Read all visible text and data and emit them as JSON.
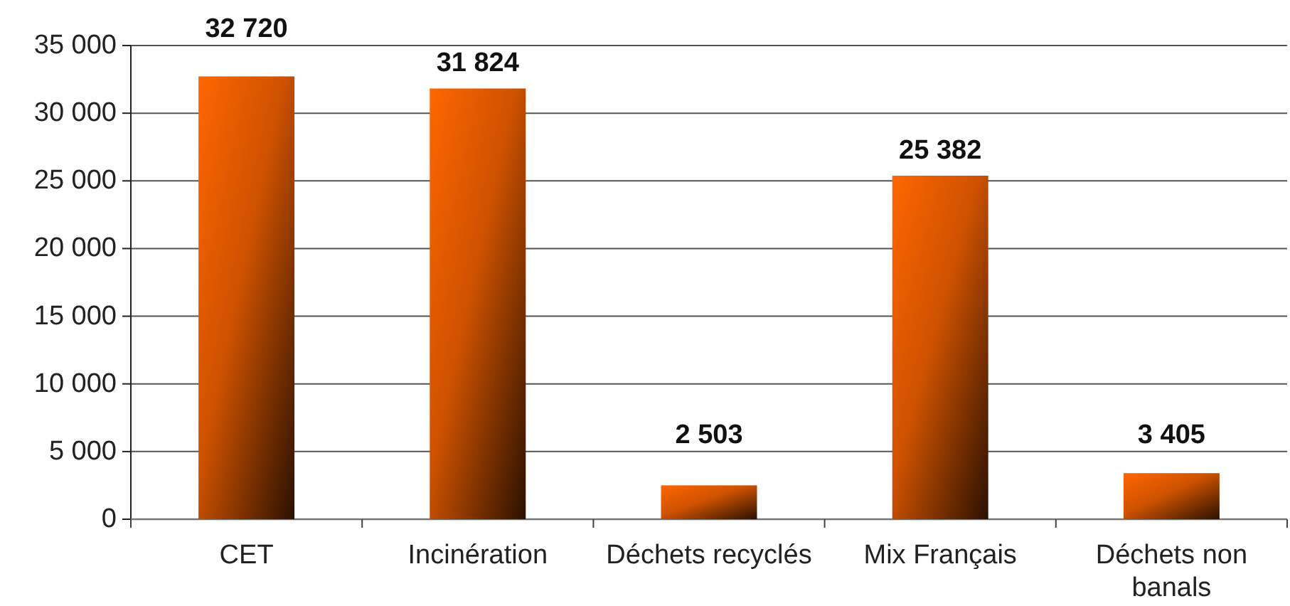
{
  "chart_data": {
    "type": "bar",
    "categories": [
      "CET",
      "Incinération",
      "Déchets recyclés",
      "Mix Français",
      "Déchets non banals"
    ],
    "values": [
      32720,
      31824,
      2503,
      25382,
      3405
    ],
    "color": "#ff6600",
    "value_labels": [
      "32 720",
      "31 824",
      "2 503",
      "25 382",
      "3 405"
    ],
    "ylim": [
      0,
      35000
    ],
    "yticks": [
      0,
      {
        "value": 5000,
        "label": "5 000"
      },
      {
        "value": 10000,
        "label": "10 000"
      },
      {
        "value": 15000,
        "label": "15 000"
      },
      {
        "value": 20000,
        "label": "20 000"
      },
      {
        "value": 25000,
        "label": "25 000"
      },
      {
        "value": 30000,
        "label": "30 000"
      },
      {
        "value": 35000,
        "label": "35 000"
      }
    ],
    "grid": "y"
  }
}
